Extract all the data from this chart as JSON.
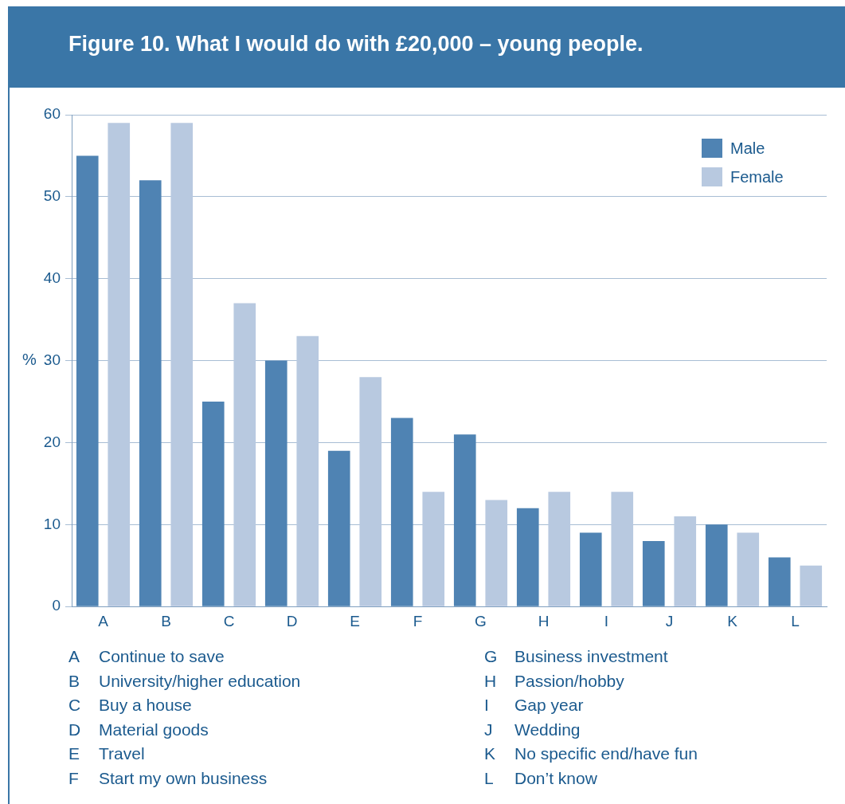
{
  "chart_data": {
    "type": "bar",
    "title": "Figure 10.  What I would do with £20,000 – young people.",
    "ylabel": "%",
    "categories": [
      "A",
      "B",
      "C",
      "D",
      "E",
      "F",
      "G",
      "H",
      "I",
      "J",
      "K",
      "L"
    ],
    "series": [
      {
        "name": "Male",
        "color": "#4f83b3",
        "values": [
          55,
          52,
          25,
          30,
          19,
          23,
          21,
          12,
          9,
          8,
          10,
          6
        ]
      },
      {
        "name": "Female",
        "color": "#b8c9e0",
        "values": [
          59,
          59,
          37,
          33,
          28,
          14,
          13,
          14,
          14,
          11,
          9,
          5
        ]
      }
    ],
    "ylim": [
      0,
      60
    ],
    "yticks": [
      0,
      10,
      20,
      30,
      40,
      50,
      60
    ],
    "grid": "y",
    "legend": "top right",
    "annotations": [
      "A Continue to save",
      "B University/higher education",
      "C Buy a house",
      "D Material goods",
      "E Travel",
      "F Start my own business",
      "G Business investment",
      "H Passion/hobby",
      "I Gap year",
      "J Wedding",
      "K No specific end/have fun",
      "L Don’t know"
    ]
  }
}
